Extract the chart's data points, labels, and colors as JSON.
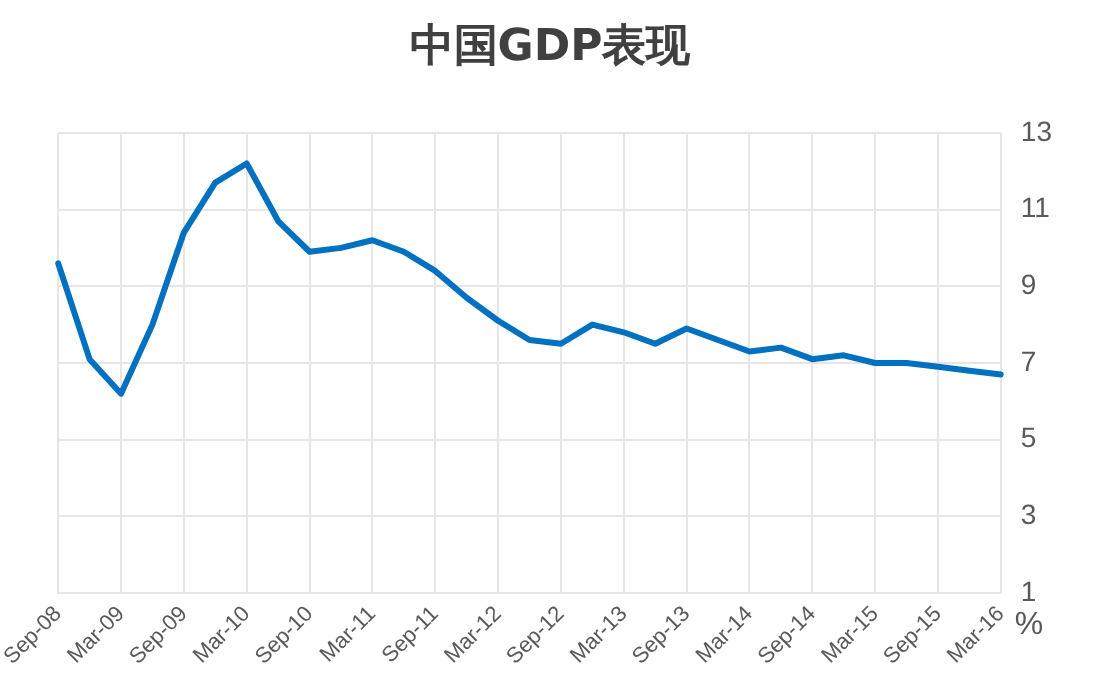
{
  "chart_data": {
    "type": "line",
    "title": "中国GDP表现",
    "ylabel": "%",
    "categories": [
      "Sep-08",
      null,
      "Mar-09",
      null,
      "Sep-09",
      null,
      "Mar-10",
      null,
      "Sep-10",
      null,
      "Mar-11",
      null,
      "Sep-11",
      null,
      "Mar-12",
      null,
      "Sep-12",
      null,
      "Mar-13",
      null,
      "Sep-13",
      null,
      "Mar-14",
      null,
      "Sep-14",
      null,
      "Mar-15",
      null,
      "Sep-15",
      null,
      "Mar-16"
    ],
    "series": [
      {
        "color": "#0070c0",
        "values": [
          9.6,
          7.1,
          6.2,
          8.0,
          10.4,
          11.7,
          12.2,
          10.7,
          9.9,
          10.0,
          10.2,
          9.9,
          9.4,
          8.7,
          8.1,
          7.6,
          7.5,
          8.0,
          7.8,
          7.5,
          7.9,
          7.6,
          7.3,
          7.4,
          7.1,
          7.2,
          7.0,
          7.0,
          6.9,
          6.8,
          6.7
        ]
      }
    ],
    "ylim": [
      1,
      13
    ],
    "yticks": [
      1,
      3,
      5,
      7,
      9,
      11,
      13
    ],
    "grid": true,
    "legend": false,
    "marker": "none",
    "line_style": "solid"
  }
}
